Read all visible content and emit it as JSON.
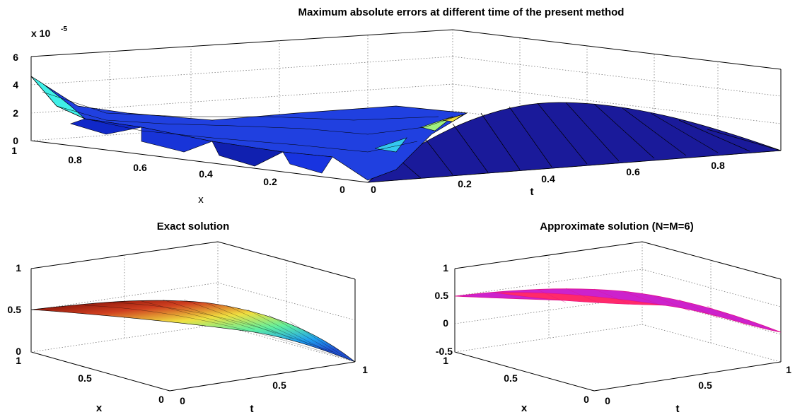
{
  "chart_data": [
    {
      "type": "surface",
      "title": "Maximum absolute errors at different time of the present method",
      "xlabel": "t",
      "ylabel": "x",
      "zlabel": "",
      "exponent_label": "x 10",
      "exponent_value": "-5",
      "x_ticks": [
        "0",
        "0.2",
        "0.4",
        "0.6",
        "0.8"
      ],
      "y_ticks": [
        "1",
        "0.8",
        "0.6",
        "0.4",
        "0.2",
        "0"
      ],
      "z_ticks": [
        "0",
        "2",
        "4",
        "6"
      ],
      "zlim": [
        0,
        6
      ],
      "grid": true,
      "colormap": "jet",
      "description_values": {
        "peak_error_at_x1_t0": 4.5,
        "typical_error": 1.2,
        "max_at_t0": 1.0
      }
    },
    {
      "type": "surface",
      "title": "Exact solution",
      "xlabel": "t",
      "ylabel": "x",
      "x_ticks": [
        "0",
        "0.5",
        "1"
      ],
      "y_ticks": [
        "1",
        "0.5",
        "0"
      ],
      "z_ticks": [
        "0",
        "0.5",
        "1"
      ],
      "zlim": [
        0,
        1
      ],
      "grid": true,
      "colormap": "jet",
      "values_at_corners": {
        "x1_t0": 0.5,
        "x0_t1": 0.0
      }
    },
    {
      "type": "surface",
      "title": "Approximate solution (N=M=6)",
      "xlabel": "t",
      "ylabel": "x",
      "x_ticks": [
        "0",
        "0.5",
        "1"
      ],
      "y_ticks": [
        "1",
        "0.5",
        "0"
      ],
      "z_ticks": [
        "-0.5",
        "0",
        "0.5",
        "1"
      ],
      "zlim": [
        -0.5,
        1
      ],
      "grid": true,
      "colors": {
        "edge": "#e0108a",
        "face_high": "#ff2a6a",
        "face_low": "#cc22cc"
      },
      "values_at_corners": {
        "x1_t0": 0.5,
        "x0_t1": -0.2
      }
    }
  ]
}
